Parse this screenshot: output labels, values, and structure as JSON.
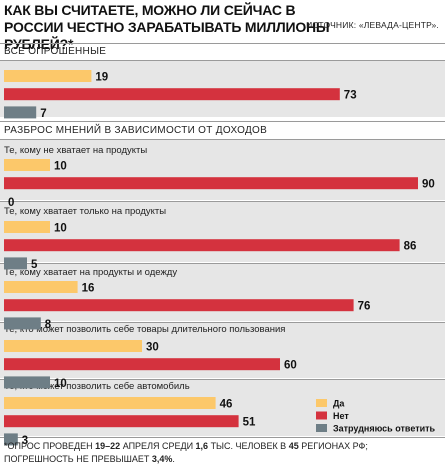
{
  "chart_data": {
    "type": "bar",
    "orientation": "horizontal",
    "title": "КАК ВЫ СЧИТАЕТЕ, МОЖНО ЛИ СЕЙЧАС В РОССИИ ЧЕСТНО ЗАРАБАТЫВАТЬ МИЛЛИОНЫ РУБЛЕЙ?*",
    "source": "ИСТОЧНИК: «ЛЕВАДА-ЦЕНТР».",
    "section_all": "ВСЕ ОПРОШЕННЫЕ",
    "section_income": "РАЗБРОС МНЕНИЙ В ЗАВИСИМОСТИ ОТ ДОХОДОВ",
    "xlim": [
      0,
      100
    ],
    "series": [
      {
        "name": "Да",
        "color": "#fcc86a"
      },
      {
        "name": "Нет",
        "color": "#d4323e"
      },
      {
        "name": "Затрудняюсь ответить",
        "color": "#6e7e86"
      }
    ],
    "groups": [
      {
        "label": "",
        "values": [
          19,
          73,
          7
        ]
      },
      {
        "label": "Те, кому не хватает на продукты",
        "values": [
          10,
          90,
          0
        ]
      },
      {
        "label": "Те, кому хватает только на продукты",
        "values": [
          10,
          86,
          5
        ]
      },
      {
        "label": "Те, кому хватает на продукты и одежду",
        "values": [
          16,
          76,
          8
        ]
      },
      {
        "label": "Те, кто может позволить себе товары длительного пользования",
        "values": [
          30,
          60,
          10
        ]
      },
      {
        "label": "Те, кто может позволить себе автомобиль",
        "values": [
          46,
          51,
          3
        ]
      }
    ],
    "legend_position": "bottom-right",
    "footnote": {
      "line1_a": "*ОПРОС ПРОВЕДЕН ",
      "line1_b": "19–22",
      "line1_c": " АПРЕЛЯ СРЕДИ ",
      "line1_d": "1,6",
      "line1_e": " ТЫС. ЧЕЛОВЕК В ",
      "line1_f": "45",
      "line1_g": " РЕГИОНАХ РФ;",
      "line2_a": "ПОГРЕШНОСТЬ НЕ ПРЕВЫШАЕТ ",
      "line2_b": "3,4%",
      "line2_c": "."
    }
  }
}
